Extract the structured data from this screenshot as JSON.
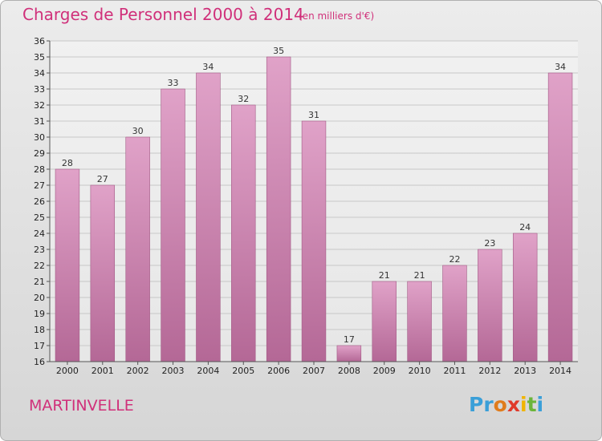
{
  "chart_data": {
    "type": "bar",
    "title": "Charges de Personnel 2000 à 2014",
    "subtitle": "(en milliers d'€)",
    "categories": [
      "2000",
      "2001",
      "2002",
      "2003",
      "2004",
      "2005",
      "2006",
      "2007",
      "2008",
      "2009",
      "2010",
      "2011",
      "2012",
      "2013",
      "2014"
    ],
    "values": [
      28,
      27,
      30,
      33,
      34,
      32,
      35,
      31,
      17,
      21,
      21,
      22,
      23,
      24,
      34
    ],
    "ylim": [
      16,
      36
    ],
    "yticks": [
      16,
      17,
      18,
      19,
      20,
      21,
      22,
      23,
      24,
      25,
      26,
      27,
      28,
      29,
      30,
      31,
      32,
      33,
      34,
      35,
      36
    ],
    "grid": true,
    "bar_color": "#e0a2c8",
    "bar_color_dark": "#b46896"
  },
  "footer": {
    "commune": "MARTINVELLE",
    "logo_letters": [
      {
        "ch": "P",
        "color": "#3a9fd8"
      },
      {
        "ch": "r",
        "color": "#3a9fd8"
      },
      {
        "ch": "o",
        "color": "#e07c1c"
      },
      {
        "ch": "x",
        "color": "#e03a2a"
      },
      {
        "ch": "i",
        "color": "#f0b400"
      },
      {
        "ch": "t",
        "color": "#6bb53a"
      },
      {
        "ch": "i",
        "color": "#3a9fd8"
      }
    ]
  }
}
